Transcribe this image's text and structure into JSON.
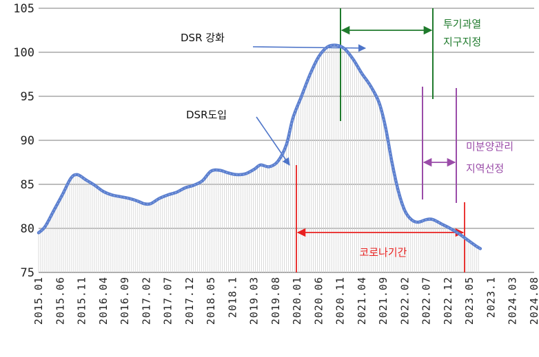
{
  "chart_data": {
    "type": "area",
    "title": "",
    "xlabel": "",
    "ylabel": "",
    "ylim": [
      75,
      105
    ],
    "yticks": [
      75,
      80,
      85,
      90,
      95,
      100,
      105
    ],
    "xtick_labels": [
      "2015.01",
      "2015.06",
      "2015.11",
      "2016.04",
      "2016.09",
      "2017.02",
      "2017.07",
      "2017.12",
      "2018.05",
      "2018.1",
      "2019.03",
      "2019.08",
      "2020.01",
      "2020.06",
      "2020.11",
      "2021.04",
      "2021.09",
      "2022.02",
      "2022.07",
      "2022.12",
      "2023.05",
      "2023.1",
      "2024.03",
      "2024.08"
    ],
    "grid": true,
    "series": [
      {
        "color": "#5b7fcf",
        "points": [
          [
            0,
            79.5
          ],
          [
            0.3,
            80.2
          ],
          [
            0.7,
            82.0
          ],
          [
            1.1,
            83.8
          ],
          [
            1.5,
            85.7
          ],
          [
            1.8,
            86.1
          ],
          [
            2.2,
            85.5
          ],
          [
            2.6,
            84.9
          ],
          [
            3.0,
            84.2
          ],
          [
            3.4,
            83.8
          ],
          [
            3.8,
            83.6
          ],
          [
            4.2,
            83.4
          ],
          [
            4.6,
            83.1
          ],
          [
            4.9,
            82.8
          ],
          [
            5.2,
            82.8
          ],
          [
            5.6,
            83.4
          ],
          [
            6.0,
            83.8
          ],
          [
            6.4,
            84.1
          ],
          [
            6.8,
            84.6
          ],
          [
            7.2,
            84.9
          ],
          [
            7.6,
            85.4
          ],
          [
            8.0,
            86.5
          ],
          [
            8.4,
            86.6
          ],
          [
            8.8,
            86.3
          ],
          [
            9.2,
            86.1
          ],
          [
            9.6,
            86.2
          ],
          [
            10.0,
            86.7
          ],
          [
            10.3,
            87.2
          ],
          [
            10.7,
            87.0
          ],
          [
            11.1,
            87.6
          ],
          [
            11.5,
            89.5
          ],
          [
            11.8,
            92.5
          ],
          [
            12.2,
            95.0
          ],
          [
            12.6,
            97.5
          ],
          [
            13.0,
            99.5
          ],
          [
            13.4,
            100.6
          ],
          [
            13.8,
            100.8
          ],
          [
            14.2,
            100.4
          ],
          [
            14.6,
            99.2
          ],
          [
            15.0,
            97.6
          ],
          [
            15.4,
            96.2
          ],
          [
            15.8,
            94.3
          ],
          [
            16.1,
            91.5
          ],
          [
            16.4,
            87.5
          ],
          [
            16.7,
            84.2
          ],
          [
            17.0,
            82.0
          ],
          [
            17.3,
            81.0
          ],
          [
            17.6,
            80.7
          ],
          [
            18.0,
            81.0
          ],
          [
            18.3,
            81.0
          ],
          [
            18.7,
            80.5
          ],
          [
            19.1,
            80.0
          ],
          [
            19.5,
            79.4
          ],
          [
            19.9,
            78.7
          ],
          [
            20.3,
            78.0
          ],
          [
            20.5,
            77.7
          ]
        ]
      }
    ],
    "annotations": {
      "dsr_intro": "DSR도입",
      "dsr_strengthen": "DSR 강화",
      "speculation_line1": "투기과열",
      "speculation_line2": "지구지정",
      "unsold_line1": "미분양관리",
      "unsold_line2": "지역선정",
      "covid": "코로나기간"
    },
    "colors": {
      "line": "#5b7fcf",
      "fill": "#e6e6e6",
      "grid": "#bdbdbd",
      "covid": "#e8201f",
      "speculation": "#1f7a2c",
      "unsold": "#9a4ca8",
      "arrow_blue": "#4d74c8"
    }
  }
}
